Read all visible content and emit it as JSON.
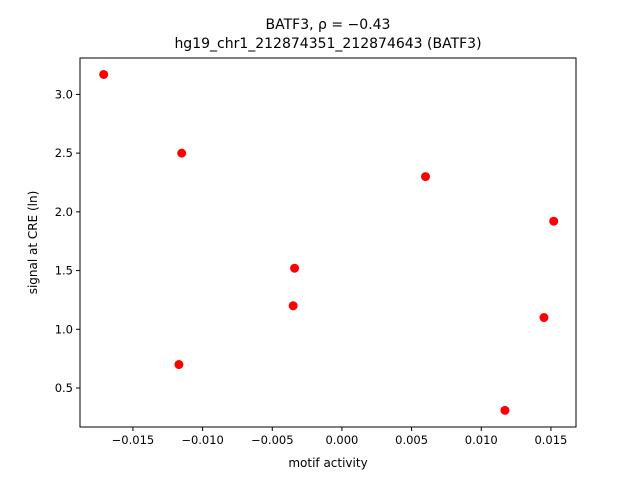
{
  "chart_data": {
    "type": "scatter",
    "title_line1": "BATF3, ρ = −0.43",
    "title_line2": "hg19_chr1_212874351_212874643 (BATF3)",
    "xlabel": "motif activity",
    "ylabel": "signal at CRE (ln)",
    "xlim": [
      -0.0188,
      0.0168
    ],
    "ylim": [
      0.168,
      3.31
    ],
    "xticks": [
      -0.015,
      -0.01,
      -0.005,
      0.0,
      0.005,
      0.01,
      0.015
    ],
    "xtick_labels": [
      "−0.015",
      "−0.010",
      "−0.005",
      "0.000",
      "0.005",
      "0.010",
      "0.015"
    ],
    "yticks": [
      0.5,
      1.0,
      1.5,
      2.0,
      2.5,
      3.0
    ],
    "ytick_labels": [
      "0.5",
      "1.0",
      "1.5",
      "2.0",
      "2.5",
      "3.0"
    ],
    "grid": false,
    "marker_color": "#ff0000",
    "points": [
      {
        "x": -0.0171,
        "y": 3.17
      },
      {
        "x": -0.0115,
        "y": 2.5
      },
      {
        "x": -0.0117,
        "y": 0.7
      },
      {
        "x": -0.0034,
        "y": 1.52
      },
      {
        "x": -0.0035,
        "y": 1.2
      },
      {
        "x": 0.006,
        "y": 2.3
      },
      {
        "x": 0.0117,
        "y": 0.31
      },
      {
        "x": 0.0145,
        "y": 1.1
      },
      {
        "x": 0.0152,
        "y": 1.92
      }
    ]
  }
}
